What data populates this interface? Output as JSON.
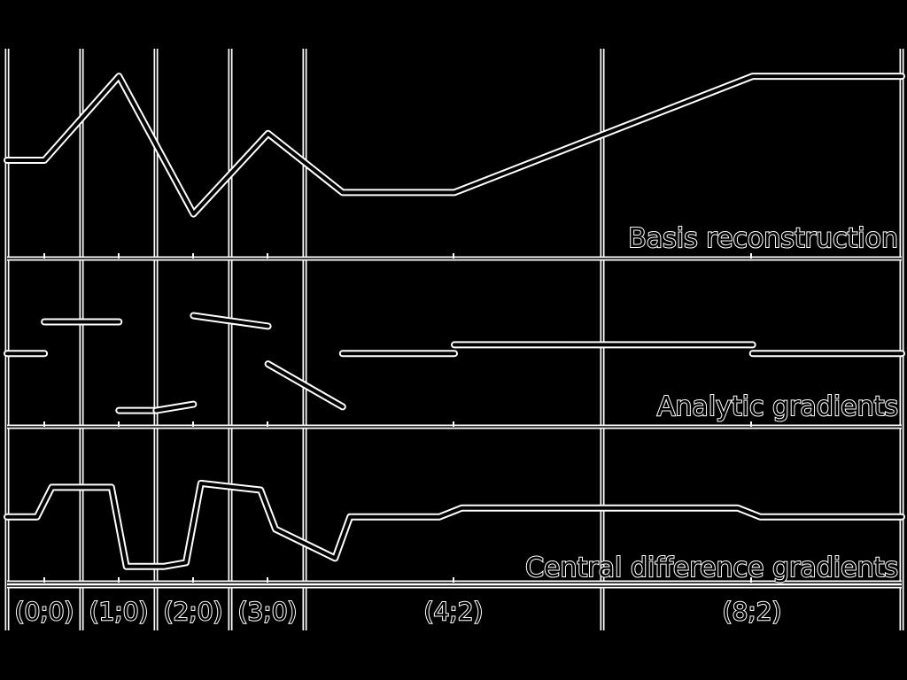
{
  "chart_data": {
    "type": "line",
    "x_categories": [
      "(0;0)",
      "(1;0)",
      "(2;0)",
      "(3;0)",
      "(4;2)",
      "(8;2)"
    ],
    "panels": [
      {
        "title": "Basis reconstruction",
        "kind": "continuous",
        "x_domain": [
          0,
          12
        ],
        "y_domain": [
          0,
          1
        ],
        "points": [
          [
            0,
            0.5
          ],
          [
            0.5,
            0.5
          ],
          [
            1.5,
            0.97
          ],
          [
            2.5,
            0.2
          ],
          [
            3.5,
            0.65
          ],
          [
            4.5,
            0.32
          ],
          [
            6,
            0.32
          ],
          [
            10,
            0.97
          ],
          [
            12,
            0.97
          ]
        ]
      },
      {
        "title": "Analytic gradients",
        "kind": "segments",
        "x_domain": [
          0,
          12
        ],
        "y_domain": [
          -1,
          1
        ],
        "segments": [
          [
            [
              0,
              0.04
            ],
            [
              0.5,
              0.04
            ]
          ],
          [
            [
              0.5,
              0.55
            ],
            [
              1.5,
              0.55
            ]
          ],
          [
            [
              1.5,
              -0.88
            ],
            [
              2,
              -0.88
            ]
          ],
          [
            [
              2,
              -0.88
            ],
            [
              2.5,
              -0.78
            ]
          ],
          [
            [
              2.5,
              0.65
            ],
            [
              3.5,
              0.48
            ]
          ],
          [
            [
              3.5,
              -0.13
            ],
            [
              4.5,
              -0.82
            ]
          ],
          [
            [
              4.5,
              0.04
            ],
            [
              6,
              0.04
            ]
          ],
          [
            [
              6,
              0.18
            ],
            [
              10,
              0.18
            ]
          ],
          [
            [
              10,
              0.04
            ],
            [
              12,
              0.04
            ]
          ]
        ]
      },
      {
        "title": "Central difference gradients",
        "kind": "continuous",
        "x_domain": [
          0,
          12
        ],
        "y_domain": [
          -1,
          1
        ],
        "points": [
          [
            0,
            0.02
          ],
          [
            0.4,
            0.02
          ],
          [
            0.6,
            0.55
          ],
          [
            1.4,
            0.55
          ],
          [
            1.6,
            -0.87
          ],
          [
            2.1,
            -0.87
          ],
          [
            2.4,
            -0.8
          ],
          [
            2.6,
            0.62
          ],
          [
            3.4,
            0.5
          ],
          [
            3.6,
            -0.2
          ],
          [
            4.4,
            -0.72
          ],
          [
            4.6,
            0.02
          ],
          [
            5.8,
            0.02
          ],
          [
            6.1,
            0.18
          ],
          [
            9.8,
            0.18
          ],
          [
            10.1,
            0.02
          ],
          [
            12,
            0.02
          ]
        ]
      }
    ]
  }
}
